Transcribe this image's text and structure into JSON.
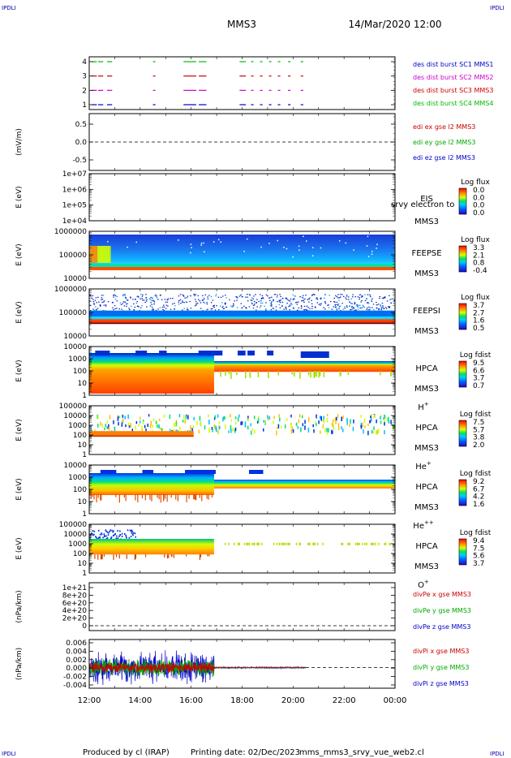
{
  "corners": {
    "tl": "IPDLI",
    "tr": "IPDLI",
    "bl": "IPDLI",
    "br": "IPDLI"
  },
  "header": {
    "spacecraft": "MMS3",
    "datetime": "14/Mar/2020 12:00"
  },
  "footer": {
    "producer": "Produced by cl (IRAP)",
    "printing_date": "Printing date: 02/Dec/2023",
    "filename": "mms_mms3_srvy_vue_web2.cl"
  },
  "colors": {
    "mms1": "#0000cc",
    "mms2": "#cc00cc",
    "mms3": "#cc0000",
    "mms4": "#00bb00",
    "x": "#cc0000",
    "y": "#00aa00",
    "z": "#0000cc"
  },
  "chart_data": {
    "type": "multi-panel time series",
    "xaxis": {
      "range": [
        "12:00",
        "00:00"
      ],
      "ticks": [
        "12:00",
        "14:00",
        "16:00",
        "18:00",
        "20:00",
        "22:00",
        "00:00"
      ]
    },
    "panels": [
      {
        "id": "burst",
        "type": "timeline",
        "ylim": [
          0.5,
          4.5
        ],
        "yticks": [
          "1",
          "2",
          "3",
          "4"
        ],
        "legend": [
          "des dist burst SC1 MMS1",
          "des dist burst SC2 MMS2",
          "des dist burst SC3 MMS3",
          "des dist burst SC4 MMS4"
        ],
        "legend_colors": [
          "#0000cc",
          "#cc00cc",
          "#cc0000",
          "#00bb00"
        ],
        "intervals": [
          [
            12.1,
            12.3
          ],
          [
            12.35,
            12.55
          ],
          [
            12.7,
            12.9
          ],
          [
            14.5,
            14.6
          ],
          [
            15.7,
            16.2
          ],
          [
            16.3,
            16.6
          ],
          [
            17.9,
            18.15
          ],
          [
            18.35,
            18.45
          ],
          [
            18.7,
            18.8
          ],
          [
            19.05,
            19.15
          ],
          [
            19.4,
            19.5
          ],
          [
            19.8,
            19.9
          ],
          [
            20.3,
            20.4
          ]
        ]
      },
      {
        "id": "edi",
        "type": "line",
        "ylabel": "(mV/m)",
        "ylim": [
          -0.85,
          0.85
        ],
        "yticks": [
          "0.5",
          "0.0",
          "-0.5"
        ],
        "legend": [
          "edi ex gse l2 MMS3",
          "edi ey gse l2 MMS3",
          "edi ez gse l2 MMS3"
        ],
        "legend_colors": [
          "#cc0000",
          "#00aa00",
          "#0000cc"
        ],
        "reference_line": 0
      },
      {
        "id": "eis",
        "type": "spectrogram",
        "ylabel": "E (eV)",
        "yticks": [
          "1e+07",
          "1e+06",
          "1e+05",
          "1e+04"
        ],
        "side_label": [
          "EIS",
          "MMS3"
        ],
        "overlay_text": "srvy electron to",
        "colorbar_title": "Log flux",
        "colorbar_ticks": [
          "0.0",
          "0.0",
          "0.0",
          "0.0"
        ]
      },
      {
        "id": "feepse",
        "type": "spectrogram",
        "ylabel": "E (eV)",
        "yticks": [
          "1000000",
          "100000",
          "10000"
        ],
        "side_label": [
          "FEEPSE",
          "MMS3"
        ],
        "colorbar_title": "Log flux",
        "colorbar_ticks": [
          "3.3",
          "2.1",
          "0.8",
          "-0.4"
        ]
      },
      {
        "id": "feepsi",
        "type": "spectrogram",
        "ylabel": "E (eV)",
        "yticks": [
          "1000000",
          "100000",
          "10000"
        ],
        "side_label": [
          "FEEPSI",
          "MMS3"
        ],
        "colorbar_title": "Log flux",
        "colorbar_ticks": [
          "3.7",
          "2.7",
          "1.6",
          "0.5"
        ]
      },
      {
        "id": "hpca_h",
        "type": "spectrogram",
        "ylabel": "E (eV)",
        "yticks": [
          "10000",
          "1000",
          "100",
          "10",
          "1"
        ],
        "side_label": [
          "HPCA",
          "MMS3",
          "H+"
        ],
        "colorbar_title": "Log fdist",
        "colorbar_ticks": [
          "9.5",
          "6.6",
          "3.7",
          "0.7"
        ]
      },
      {
        "id": "hpca_he",
        "type": "spectrogram",
        "ylabel": "E (eV)",
        "yticks": [
          "100000",
          "10000",
          "1000",
          "100",
          "10",
          "1"
        ],
        "side_label": [
          "HPCA",
          "MMS3",
          "He+"
        ],
        "colorbar_title": "Log fdist",
        "colorbar_ticks": [
          "7.5",
          "5.7",
          "3.8",
          "2.0"
        ]
      },
      {
        "id": "hpca_hepp",
        "type": "spectrogram",
        "ylabel": "E (eV)",
        "yticks": [
          "10000",
          "1000",
          "100",
          "10",
          "1"
        ],
        "side_label": [
          "HPCA",
          "MMS3",
          "He++"
        ],
        "colorbar_title": "Log fdist",
        "colorbar_ticks": [
          "9.2",
          "6.7",
          "4.2",
          "1.6"
        ]
      },
      {
        "id": "hpca_o",
        "type": "spectrogram",
        "ylabel": "E (eV)",
        "yticks": [
          "100000",
          "10000",
          "1000",
          "100",
          "10",
          "1"
        ],
        "side_label": [
          "HPCA",
          "MMS3",
          "O+"
        ],
        "colorbar_title": "Log fdist",
        "colorbar_ticks": [
          "9.4",
          "7.5",
          "5.6",
          "3.7"
        ]
      },
      {
        "id": "divpe",
        "type": "line",
        "ylabel": "(nPa/km)",
        "ylim": [
          -1e+20,
          1.1e+21
        ],
        "yticks": [
          "1e+21",
          "8e+20",
          "6e+20",
          "4e+20",
          "2e+20",
          "0"
        ],
        "legend": [
          "divPe x gse MMS3",
          "divPe y gse MMS3",
          "divPe z gse MMS3"
        ],
        "legend_colors": [
          "#cc0000",
          "#00aa00",
          "#0000cc"
        ],
        "reference_line": 0
      },
      {
        "id": "divpi",
        "type": "line",
        "ylabel": "(nPa/km)",
        "ylim": [
          -0.0055,
          0.0075
        ],
        "yticks": [
          "0.006",
          "0.004",
          "0.002",
          "0.000",
          "-0.002",
          "-0.004"
        ],
        "legend": [
          "divPi x gse MMS3",
          "divPi y gse MMS3",
          "divPi z gse MMS3"
        ],
        "legend_colors": [
          "#cc0000",
          "#00aa00",
          "#0000cc"
        ],
        "reference_line": 0,
        "data_extent_hours": [
          12.0,
          20.5
        ],
        "disturbed_until_hours": 16.9
      }
    ]
  }
}
